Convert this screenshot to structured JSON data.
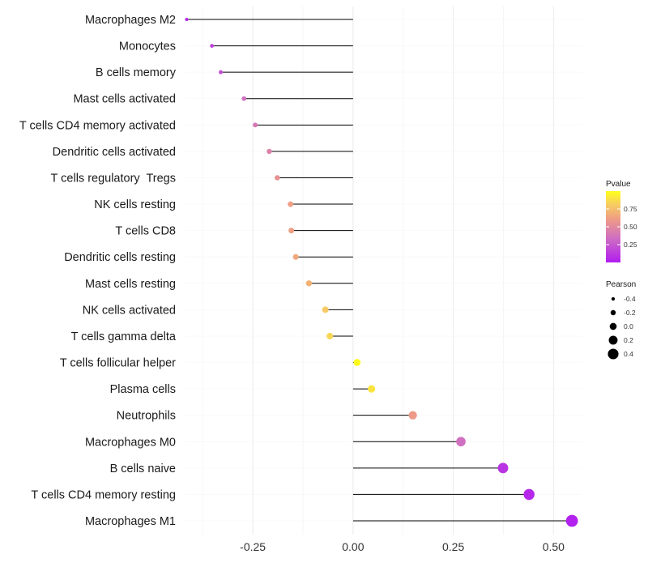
{
  "chart_data": {
    "type": "lollipop",
    "categories": [
      "Macrophages M2",
      "Monocytes",
      "B cells memory",
      "Mast cells activated",
      "T cells CD4 memory activated",
      "Dendritic cells activated",
      "T cells regulatory  Tregs",
      "NK cells resting",
      "T cells CD8",
      "Dendritic cells resting",
      "Mast cells resting",
      "NK cells activated",
      "T cells gamma delta",
      "T cells follicular helper",
      "Plasma cells",
      "Neutrophils",
      "Macrophages M0",
      "B cells naive",
      "T cells CD4 memory resting",
      "Macrophages M1"
    ],
    "values": [
      -0.415,
      -0.352,
      -0.33,
      -0.272,
      -0.244,
      -0.209,
      -0.189,
      -0.156,
      -0.154,
      -0.143,
      -0.11,
      -0.069,
      -0.058,
      0.01,
      0.046,
      0.149,
      0.269,
      0.374,
      0.439,
      0.546
    ],
    "pvalues": [
      0.05,
      0.15,
      0.2,
      0.35,
      0.4,
      0.45,
      0.55,
      0.62,
      0.62,
      0.66,
      0.7,
      0.8,
      0.85,
      0.99,
      0.9,
      0.6,
      0.35,
      0.1,
      0.05,
      0.02
    ],
    "xlim": [
      -0.42,
      0.57
    ],
    "xticks": [
      -0.25,
      0.0,
      0.25,
      0.5
    ],
    "xtick_labels": [
      "-0.25",
      "0.00",
      "0.25",
      "0.50"
    ],
    "grid": true,
    "legend_position": "right",
    "color_legend": {
      "title": "Pvalue",
      "tick_values": [
        0.75,
        0.5,
        0.25
      ],
      "tick_labels": [
        "0.75",
        "0.50",
        "0.25"
      ],
      "range": [
        0,
        1
      ],
      "low_color": "#b01cf0",
      "mid_color": "#ea9090",
      "high_color": "#ffff1a"
    },
    "size_legend": {
      "title": "Pearson",
      "values": [
        -0.4,
        -0.2,
        0.0,
        0.2,
        0.4
      ],
      "labels": [
        "-0.4",
        "-0.2",
        "0.0",
        "0.2",
        "0.4"
      ]
    },
    "xlabel": "",
    "ylabel": ""
  }
}
